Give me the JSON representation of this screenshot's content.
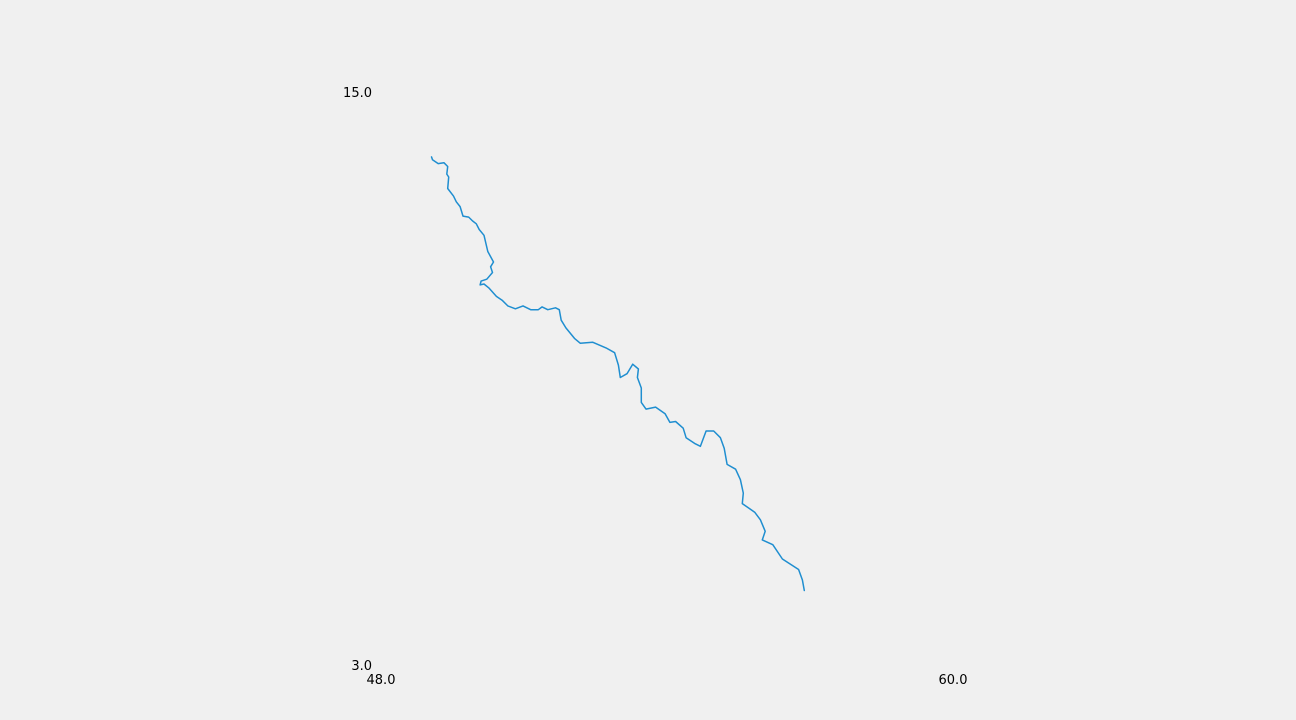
{
  "chart_data": {
    "type": "line",
    "title": "",
    "xlabel": "",
    "ylabel": "",
    "xlim": [
      48.0,
      60.0
    ],
    "ylim": [
      3.0,
      15.0
    ],
    "grid": false,
    "legend": "none",
    "axis_labels": {
      "x_min": "48.0",
      "x_max": "60.0",
      "y_min": "3.0",
      "y_max": "15.0"
    },
    "series": [
      {
        "color": "#1f8ed0",
        "points": [
          [
            49.06,
            13.64
          ],
          [
            49.08,
            13.58
          ],
          [
            49.2,
            13.5
          ],
          [
            49.32,
            13.52
          ],
          [
            49.4,
            13.44
          ],
          [
            49.38,
            13.28
          ],
          [
            49.42,
            13.22
          ],
          [
            49.4,
            12.98
          ],
          [
            49.52,
            12.82
          ],
          [
            49.58,
            12.7
          ],
          [
            49.66,
            12.6
          ],
          [
            49.72,
            12.4
          ],
          [
            49.84,
            12.38
          ],
          [
            49.92,
            12.3
          ],
          [
            50.0,
            12.24
          ],
          [
            50.06,
            12.12
          ],
          [
            50.16,
            12.0
          ],
          [
            50.24,
            11.66
          ],
          [
            50.36,
            11.44
          ],
          [
            50.3,
            11.34
          ],
          [
            50.34,
            11.22
          ],
          [
            50.22,
            11.08
          ],
          [
            50.1,
            11.04
          ],
          [
            50.08,
            10.96
          ],
          [
            50.16,
            10.98
          ],
          [
            50.26,
            10.9
          ],
          [
            50.42,
            10.72
          ],
          [
            50.54,
            10.64
          ],
          [
            50.66,
            10.52
          ],
          [
            50.82,
            10.46
          ],
          [
            50.98,
            10.52
          ],
          [
            51.14,
            10.44
          ],
          [
            51.3,
            10.44
          ],
          [
            51.38,
            10.5
          ],
          [
            51.5,
            10.44
          ],
          [
            51.66,
            10.48
          ],
          [
            51.74,
            10.44
          ],
          [
            51.78,
            10.22
          ],
          [
            51.88,
            10.06
          ],
          [
            52.06,
            9.84
          ],
          [
            52.18,
            9.74
          ],
          [
            52.44,
            9.76
          ],
          [
            52.72,
            9.64
          ],
          [
            52.9,
            9.54
          ],
          [
            52.98,
            9.28
          ],
          [
            53.02,
            9.02
          ],
          [
            53.16,
            9.1
          ],
          [
            53.28,
            9.3
          ],
          [
            53.4,
            9.2
          ],
          [
            53.38,
            9.02
          ],
          [
            53.46,
            8.8
          ],
          [
            53.46,
            8.5
          ],
          [
            53.56,
            8.36
          ],
          [
            53.76,
            8.4
          ],
          [
            53.96,
            8.26
          ],
          [
            54.06,
            8.08
          ],
          [
            54.18,
            8.1
          ],
          [
            54.34,
            7.96
          ],
          [
            54.4,
            7.76
          ],
          [
            54.58,
            7.64
          ],
          [
            54.7,
            7.58
          ],
          [
            54.82,
            7.9
          ],
          [
            54.98,
            7.9
          ],
          [
            55.12,
            7.76
          ],
          [
            55.2,
            7.54
          ],
          [
            55.26,
            7.2
          ],
          [
            55.44,
            7.1
          ],
          [
            55.54,
            6.88
          ],
          [
            55.6,
            6.6
          ],
          [
            55.58,
            6.38
          ],
          [
            55.84,
            6.2
          ],
          [
            55.96,
            6.04
          ],
          [
            56.06,
            5.8
          ],
          [
            56.0,
            5.62
          ],
          [
            56.22,
            5.52
          ],
          [
            56.42,
            5.22
          ],
          [
            56.76,
            5.0
          ],
          [
            56.84,
            4.78
          ],
          [
            56.88,
            4.56
          ]
        ]
      }
    ]
  }
}
